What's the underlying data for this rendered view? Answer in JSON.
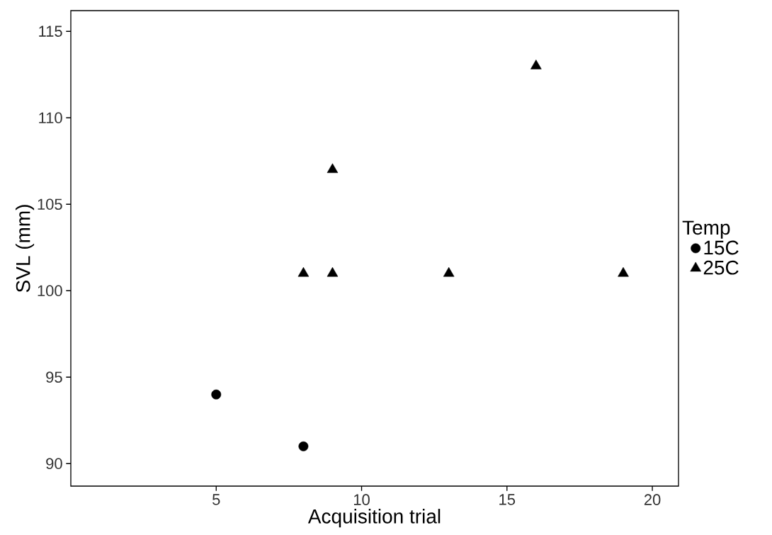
{
  "chart_data": {
    "type": "scatter",
    "xlabel": "Acquisition trial",
    "ylabel": "SVL (mm)",
    "legend_title": "Temp",
    "legend": "right",
    "grid": false,
    "xlim": [
      0,
      20.9
    ],
    "ylim": [
      88.7,
      116.2
    ],
    "xticks": [
      5,
      10,
      15,
      20
    ],
    "yticks": [
      90,
      95,
      100,
      105,
      110,
      115
    ],
    "series": [
      {
        "name": "15C",
        "color": "#000000",
        "marker": "circle",
        "x": [
          5,
          8
        ],
        "values": [
          94,
          91
        ]
      },
      {
        "name": "25C",
        "color": "#000000",
        "marker": "triangle",
        "x": [
          8,
          9,
          9,
          13,
          16,
          19
        ],
        "values": [
          101,
          107,
          101,
          101,
          113,
          101
        ]
      }
    ]
  }
}
